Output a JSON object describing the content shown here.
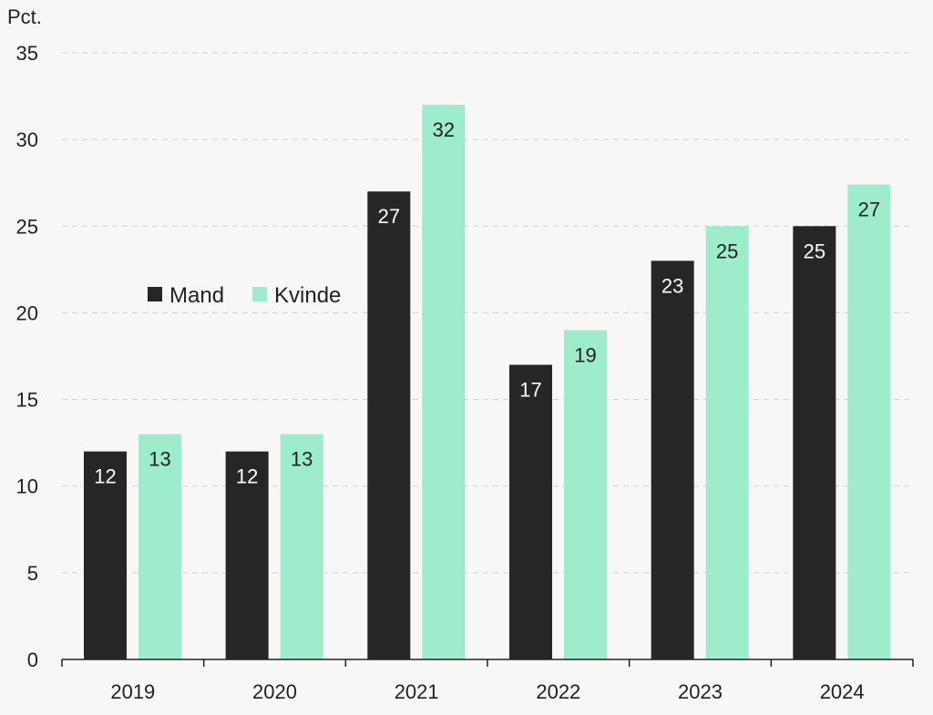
{
  "chart_data": {
    "type": "bar",
    "unit_label": "Pct.",
    "categories": [
      "2019",
      "2020",
      "2021",
      "2022",
      "2023",
      "2024"
    ],
    "series": [
      {
        "name": "Mand",
        "color": "#262626",
        "label_color": "#ffffff",
        "values": [
          12,
          12,
          27,
          17,
          23,
          25
        ],
        "labels": [
          "12",
          "12",
          "27",
          "17",
          "23",
          "25"
        ]
      },
      {
        "name": "Kvinde",
        "color": "#9deccb",
        "label_color": "#222222",
        "values": [
          13,
          13,
          32,
          19,
          25,
          27.4
        ],
        "labels": [
          "13",
          "13",
          "32",
          "19",
          "25",
          "27"
        ]
      }
    ],
    "y_ticks": [
      "0",
      "5",
      "10",
      "15",
      "20",
      "25",
      "30",
      "35"
    ],
    "ylim": [
      0,
      35
    ],
    "grid": true,
    "legend_position": "left, mid-height"
  }
}
